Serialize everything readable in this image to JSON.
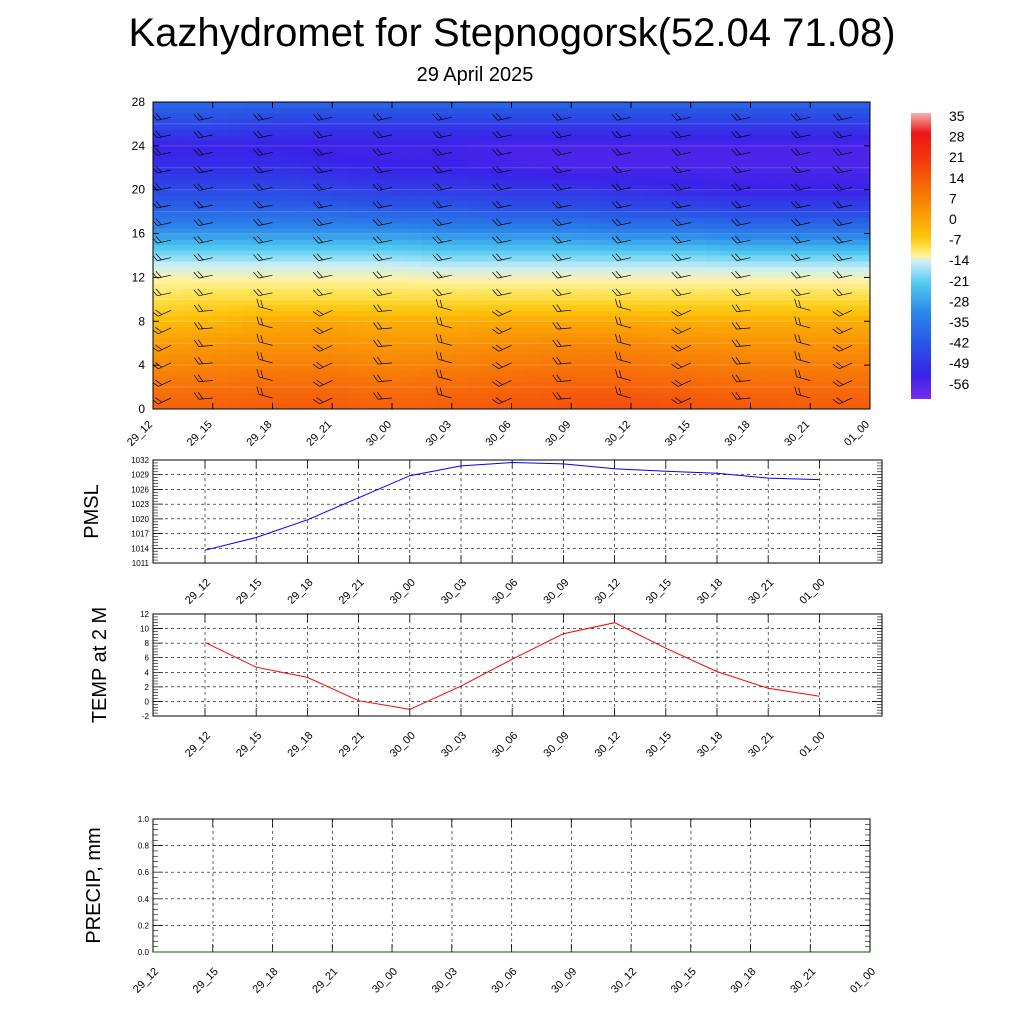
{
  "header": {
    "title": "Kazhydromet for Stepnogorsk(52.04 71.08)",
    "subtitle": "29 April 2025"
  },
  "chart_data": [
    {
      "type": "heatmap",
      "title": "",
      "xlabel": "",
      "ylabel": "",
      "categories": [
        "29_12",
        "29_15",
        "29_18",
        "29_21",
        "30_00",
        "30_03",
        "30_06",
        "30_09",
        "30_12",
        "30_15",
        "30_18",
        "30_21",
        "01_00"
      ],
      "yticks": [
        0,
        4,
        8,
        12,
        16,
        20,
        24,
        28
      ],
      "ylim": [
        0,
        28
      ],
      "colorbar": {
        "labels": [
          35,
          28,
          21,
          14,
          7,
          0,
          -7,
          -14,
          -21,
          -28,
          -35,
          -42,
          -49,
          -56
        ],
        "colors": [
          "#f5b0b0",
          "#ee1616",
          "#f23210",
          "#f5560c",
          "#f77a08",
          "#fa9e06",
          "#fcc20a",
          "#fde14a",
          "#fff2a0",
          "#c8eef8",
          "#4fc8f0",
          "#2a86e8",
          "#2a50e6",
          "#3a22e8",
          "#7a2cf0"
        ]
      },
      "temperature_profile": {
        "note_levels": [
          0,
          2,
          4,
          6,
          8,
          10,
          12,
          14,
          16,
          18,
          20,
          22,
          24,
          26,
          28
        ],
        "columns": [
          [
            12,
            8,
            4,
            0,
            -6,
            -14,
            -22,
            -32,
            -40,
            -46,
            -50,
            -54,
            -56,
            -50,
            -46
          ],
          [
            12,
            9,
            5,
            1,
            -5,
            -12,
            -22,
            -32,
            -40,
            -46,
            -50,
            -54,
            -56,
            -50,
            -46
          ],
          [
            13,
            10,
            6,
            2,
            -2,
            -12,
            -22,
            -32,
            -40,
            -46,
            -50,
            -54,
            -56,
            -52,
            -46
          ],
          [
            13,
            10,
            6,
            2,
            -2,
            -12,
            -22,
            -32,
            -40,
            -46,
            -51,
            -55,
            -57,
            -52,
            -46
          ],
          [
            12,
            9,
            5,
            1,
            -3,
            -12,
            -22,
            -32,
            -40,
            -47,
            -52,
            -56,
            -57,
            -52,
            -46
          ],
          [
            13,
            10,
            6,
            2,
            -3,
            -12,
            -23,
            -33,
            -41,
            -47,
            -52,
            -56,
            -57,
            -52,
            -46
          ],
          [
            14,
            11,
            7,
            3,
            -2,
            -12,
            -23,
            -33,
            -41,
            -48,
            -53,
            -57,
            -58,
            -52,
            -46
          ],
          [
            15,
            12,
            8,
            4,
            -2,
            -12,
            -23,
            -33,
            -41,
            -48,
            -53,
            -58,
            -58,
            -52,
            -46
          ],
          [
            16,
            12,
            8,
            4,
            -2,
            -12,
            -23,
            -33,
            -42,
            -49,
            -54,
            -58,
            -58,
            -52,
            -46
          ],
          [
            15,
            11,
            7,
            3,
            -3,
            -12,
            -23,
            -33,
            -42,
            -49,
            -55,
            -58,
            -58,
            -52,
            -46
          ],
          [
            14,
            10,
            6,
            2,
            -3,
            -12,
            -23,
            -34,
            -43,
            -50,
            -56,
            -58,
            -58,
            -52,
            -46
          ],
          [
            13,
            10,
            6,
            2,
            -3,
            -12,
            -23,
            -34,
            -43,
            -50,
            -56,
            -58,
            -58,
            -52,
            -46
          ],
          [
            13,
            10,
            6,
            2,
            -3,
            -12,
            -23,
            -34,
            -43,
            -50,
            -56,
            -58,
            -58,
            -52,
            -46
          ]
        ]
      },
      "wind_barbs": "present at every time step"
    },
    {
      "type": "line",
      "ylabel": "PMSL",
      "x": [
        "29_12",
        "29_15",
        "29_18",
        "29_21",
        "30_00",
        "30_03",
        "30_06",
        "30_09",
        "30_12",
        "30_15",
        "30_18",
        "30_21",
        "01_00"
      ],
      "yticks": [
        1011,
        1014,
        1017,
        1020,
        1023,
        1026,
        1029,
        1032
      ],
      "ylim": [
        1011,
        1032
      ],
      "series": [
        {
          "color": "#0000ff",
          "values": [
            1013.6,
            1016.2,
            1019.8,
            1024.3,
            1028.8,
            1030.8,
            1031.5,
            1031.2,
            1030.2,
            1029.7,
            1029.3,
            1028.3,
            1028.0
          ]
        }
      ],
      "grid": true
    },
    {
      "type": "line",
      "ylabel": "TEMP at 2 M",
      "x": [
        "29_12",
        "29_15",
        "29_18",
        "29_21",
        "30_00",
        "30_03",
        "30_06",
        "30_09",
        "30_12",
        "30_15",
        "30_18",
        "30_21",
        "01_00"
      ],
      "yticks": [
        -2,
        0,
        2,
        4,
        6,
        8,
        10,
        12
      ],
      "ylim": [
        -2,
        12
      ],
      "series": [
        {
          "color": "#ff0000",
          "values": [
            8.1,
            4.7,
            3.3,
            0.1,
            -1.1,
            2.1,
            5.8,
            9.3,
            10.8,
            7.3,
            4.1,
            1.8,
            0.7
          ]
        }
      ],
      "grid": true
    },
    {
      "type": "line",
      "ylabel": "PRECIP, mm",
      "x": [
        "29_12",
        "29_15",
        "29_18",
        "29_21",
        "30_00",
        "30_03",
        "30_06",
        "30_09",
        "30_12",
        "30_15",
        "30_18",
        "30_21",
        "01_00"
      ],
      "yticks": [
        "0.0",
        "0.2",
        "0.4",
        "0.6",
        "0.8",
        "1.0"
      ],
      "ylim": [
        0,
        1
      ],
      "series": [
        {
          "color": "#006400",
          "values": [
            0,
            0,
            0,
            0,
            0,
            0,
            0,
            0,
            0,
            0,
            0,
            0,
            0
          ]
        }
      ],
      "grid": true
    }
  ]
}
